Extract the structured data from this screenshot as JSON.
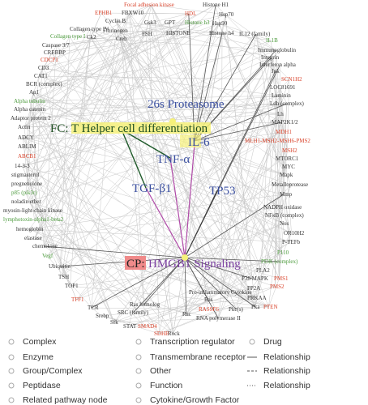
{
  "peripheral_nodes": [
    "Focal adhesion kinase",
    "Histone H1",
    "EPHB1",
    "FBXW10",
    "HDL",
    "Hsp70",
    "Cyclin B",
    "Gsk3",
    "GPT",
    "Histone h3",
    "Hsp90",
    "Collagen type IV",
    "Fibrinogen",
    "Collagen type I",
    "Ck2",
    "Creb",
    "FSH",
    "HISTONE",
    "Histone h4",
    "IL12 (family)",
    "IL1B",
    "Caspase 3/7",
    "CREBBP",
    "CDCP1",
    "CD3",
    "CAT1",
    "BCR (complex)",
    "Ap1",
    "Alpha tubulin",
    "Alpha catenin",
    "Adaptor protein 2",
    "Actin",
    "ADCY",
    "ABLIM",
    "ABCB1",
    "14-3-3",
    "stigmasterol",
    "pregnenolone",
    "p85 (pik3r)",
    "noladin ether",
    "myosin-light-chain kinase",
    "lymphotoxin-alpha1-beta2",
    "hemoglobin",
    "elastase",
    "chemokine",
    "Vegf",
    "Ubiquitin",
    "TSH",
    "TOP1",
    "TFF1",
    "TCR",
    "Srebp",
    "SRC (family)",
    "Ras homolog",
    "Sfk",
    "STAT",
    "SMAD4",
    "SDHB",
    "Rock",
    "Rac",
    "Ras",
    "RASSF6",
    "RNA polymerase II",
    "Pkc(s)",
    "Pro-inflammatory Cytokine",
    "PRKAA",
    "Pka",
    "PTEN",
    "PP2A",
    "PLA2",
    "PMS2",
    "PMS1",
    "P38 MAPK",
    "PI3K (complex)",
    "P110",
    "P-TEFb",
    "OR10H2",
    "Nos",
    "NFκB (complex)",
    "NADPH oxidase",
    "Mmp",
    "Metalloprotease",
    "Mapk",
    "MYC",
    "MTORC1",
    "MSH2",
    "MLH1-MSH2-MSH6-PMS2",
    "MDH1",
    "MAP2K1/2",
    "Lh",
    "Ldh (complex)",
    "Laminin",
    "LOC81691",
    "SCN1H2",
    "Jnk",
    "Interferon alpha",
    "Integrin",
    "Immunoglobulin"
  ],
  "central_nodes": {
    "proteasome": "26s Proteasome",
    "fc": "FC: T Helper cell differentiation",
    "il6": "IL-6",
    "tnf": "TNF-α",
    "tgf": "TGF-β1",
    "tp53": "TP53",
    "cp_prefix": "CP:",
    "cp_name": "HMGB1 Signaling"
  },
  "legend": [
    "Complex",
    "Enzyme",
    "Group/Complex",
    "Peptidase",
    "Related pathway node",
    "Transcription regulator",
    "Transmembrane receptor",
    "Other",
    "Function",
    "Cytokine/Growth Factor",
    "Drug",
    "Relationship",
    "Relationship",
    "Relationship"
  ]
}
